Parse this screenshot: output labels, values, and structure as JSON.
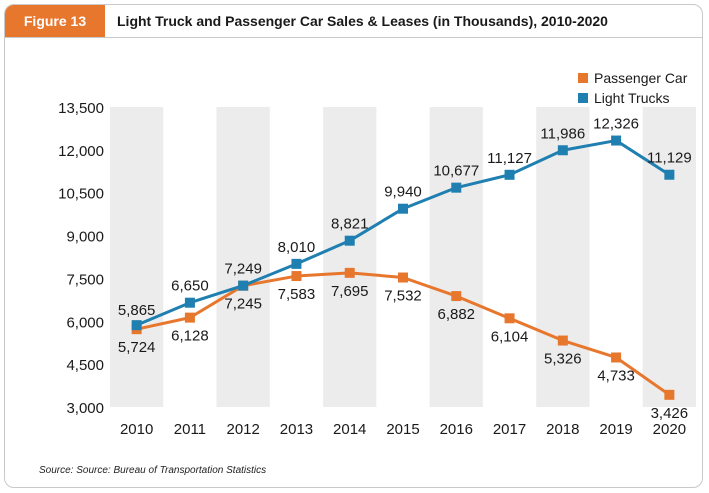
{
  "figure": {
    "badge": "Figure 13",
    "title": "Light Truck and Passenger Car Sales & Leases (in Thousands), 2010-2020",
    "source": "Source: Source: Bureau of Transportation Statistics"
  },
  "colors": {
    "accent": "#e8772e",
    "passenger": "#e8772e",
    "trucks": "#1f7fb0",
    "band": "#ececec"
  },
  "chart_data": {
    "type": "line",
    "title": "Light Truck and Passenger Car Sales & Leases (in Thousands), 2010-2020",
    "xlabel": "",
    "ylabel": "",
    "x": [
      "2010",
      "2011",
      "2012",
      "2013",
      "2014",
      "2015",
      "2016",
      "2017",
      "2018",
      "2019",
      "2020"
    ],
    "ylim": [
      3000,
      13500
    ],
    "yticks": [
      3000,
      4500,
      6000,
      7500,
      9000,
      10500,
      12000,
      13500
    ],
    "ytick_labels": [
      "3,000",
      "4,500",
      "6,000",
      "7,500",
      "9,000",
      "10,500",
      "12,000",
      "13,500"
    ],
    "legend": {
      "position": "top-right"
    },
    "series": [
      {
        "name": "Passenger Car",
        "values": [
          5724,
          6128,
          7245,
          7583,
          7695,
          7532,
          6882,
          6104,
          5326,
          4733,
          3426
        ],
        "labels": [
          "5,724",
          "6,128",
          "7,245",
          "7,583",
          "7,695",
          "7,532",
          "6,882",
          "6,104",
          "5,326",
          "4,733",
          "3,426"
        ]
      },
      {
        "name": "Light Trucks",
        "values": [
          5865,
          6650,
          7249,
          8010,
          8821,
          9940,
          10677,
          11127,
          11986,
          12326,
          11129
        ],
        "labels": [
          "5,865",
          "6,650",
          "7,249",
          "8,010",
          "8,821",
          "9,940",
          "10,677",
          "11,127",
          "11,986",
          "12,326",
          "11,129"
        ]
      }
    ]
  }
}
